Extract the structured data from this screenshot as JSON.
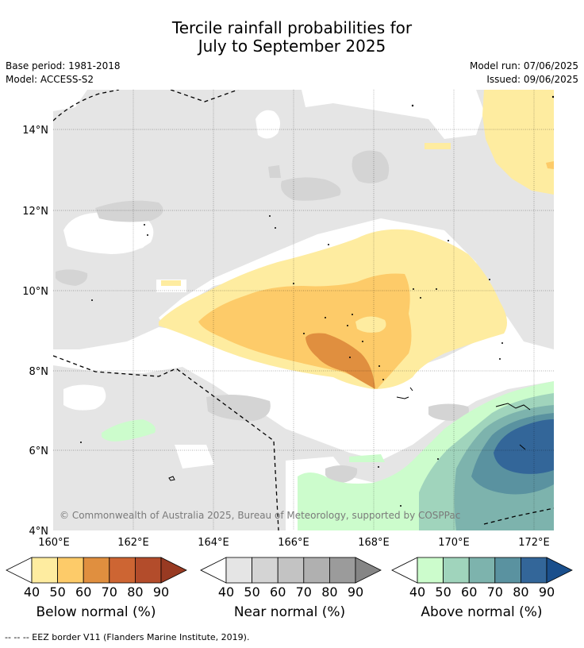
{
  "title": {
    "line1": "Tercile rainfall probabilities for",
    "line2": "July to September 2025"
  },
  "meta": {
    "base_period": "Base period: 1981-2018",
    "model": "Model: ACCESS-S2",
    "model_run": "Model run: 07/06/2025",
    "issued": "Issued: 09/06/2025"
  },
  "map": {
    "lat_labels": [
      "14°N",
      "12°N",
      "10°N",
      "8°N",
      "6°N",
      "4°N"
    ],
    "lon_labels": [
      "160°E",
      "162°E",
      "164°E",
      "166°E",
      "168°E",
      "170°E",
      "172°E"
    ],
    "copyright": "© Commonwealth of Australia 2025, Bureau of Meteorology, supported by COSPPac",
    "colors": {
      "near_normal_bg": "#e5e5e5",
      "near_normal_50": "#d4d4d4",
      "below_40": "#feeca0",
      "below_50": "#fdcb69",
      "below_60": "#e08f3f",
      "above_40": "#ccfccc",
      "above_50": "#a0d4bc",
      "above_60": "#7db3ad",
      "above_70": "#5a92a0",
      "above_80": "#336699"
    }
  },
  "colorbars": [
    {
      "caption": "Below normal (%)",
      "ticks": [
        "40",
        "50",
        "60",
        "70",
        "80",
        "90"
      ],
      "colors": [
        "#feeca0",
        "#fdcb69",
        "#e08f3f",
        "#cd6533",
        "#b34c2b",
        "#983a22"
      ]
    },
    {
      "caption": "Near normal (%)",
      "ticks": [
        "40",
        "50",
        "60",
        "70",
        "80",
        "90"
      ],
      "colors": [
        "#e5e5e5",
        "#d4d4d4",
        "#c3c3c3",
        "#b0b0b0",
        "#9b9b9b",
        "#858585"
      ]
    },
    {
      "caption": "Above normal (%)",
      "ticks": [
        "40",
        "50",
        "60",
        "70",
        "80",
        "90"
      ],
      "colors": [
        "#ccfccc",
        "#a0d4bc",
        "#7db3ad",
        "#5a92a0",
        "#336699",
        "#1a4f8c"
      ]
    }
  ],
  "footer": "--  --  -- EEZ border V11 (Flanders Marine Institute, 2019)."
}
